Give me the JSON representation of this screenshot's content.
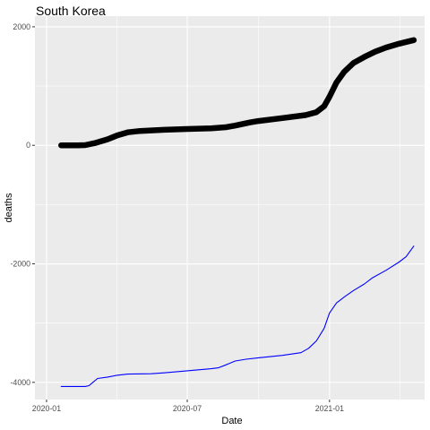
{
  "chart_data": {
    "type": "line",
    "title": "South Korea",
    "xlabel": "Date",
    "ylabel": "deaths",
    "x_ticks": [
      "2020-01",
      "2020-07",
      "2021-01"
    ],
    "y_ticks": [
      -4000,
      -2000,
      0,
      2000
    ],
    "xlim": [
      "2019-12-17",
      "2021-05-04"
    ],
    "ylim": [
      -4290,
      2180
    ],
    "grid": true,
    "legend": "none",
    "series": [
      {
        "style": "thick-black-points",
        "color": "#000000",
        "points": [
          [
            "2020-01-20",
            0
          ],
          [
            "2020-02-10",
            0
          ],
          [
            "2020-02-20",
            3
          ],
          [
            "2020-03-05",
            42
          ],
          [
            "2020-03-20",
            102
          ],
          [
            "2020-04-01",
            165
          ],
          [
            "2020-04-15",
            220
          ],
          [
            "2020-05-01",
            242
          ],
          [
            "2020-06-01",
            262
          ],
          [
            "2020-07-01",
            275
          ],
          [
            "2020-08-01",
            288
          ],
          [
            "2020-08-20",
            305
          ],
          [
            "2020-09-01",
            332
          ],
          [
            "2020-09-20",
            385
          ],
          [
            "2020-10-01",
            410
          ],
          [
            "2020-11-01",
            460
          ],
          [
            "2020-12-01",
            510
          ],
          [
            "2020-12-15",
            560
          ],
          [
            "2020-12-25",
            660
          ],
          [
            "2021-01-01",
            820
          ],
          [
            "2021-01-10",
            1060
          ],
          [
            "2021-01-20",
            1240
          ],
          [
            "2021-02-01",
            1390
          ],
          [
            "2021-02-15",
            1490
          ],
          [
            "2021-03-01",
            1580
          ],
          [
            "2021-03-15",
            1650
          ],
          [
            "2021-04-01",
            1715
          ],
          [
            "2021-04-15",
            1760
          ],
          [
            "2021-04-20",
            1775
          ]
        ]
      },
      {
        "style": "thin-blue-line",
        "color": "#0000ff",
        "points": [
          [
            "2020-01-20",
            -4070
          ],
          [
            "2020-02-20",
            -4070
          ],
          [
            "2020-02-25",
            -4055
          ],
          [
            "2020-03-01",
            -4000
          ],
          [
            "2020-03-07",
            -3935
          ],
          [
            "2020-03-20",
            -3910
          ],
          [
            "2020-04-01",
            -3880
          ],
          [
            "2020-04-15",
            -3860
          ],
          [
            "2020-05-15",
            -3855
          ],
          [
            "2020-06-01",
            -3840
          ],
          [
            "2020-07-01",
            -3805
          ],
          [
            "2020-08-01",
            -3770
          ],
          [
            "2020-08-10",
            -3755
          ],
          [
            "2020-08-20",
            -3705
          ],
          [
            "2020-09-01",
            -3640
          ],
          [
            "2020-09-15",
            -3610
          ],
          [
            "2020-10-01",
            -3585
          ],
          [
            "2020-11-01",
            -3545
          ],
          [
            "2020-11-25",
            -3500
          ],
          [
            "2020-12-05",
            -3425
          ],
          [
            "2020-12-15",
            -3300
          ],
          [
            "2020-12-25",
            -3090
          ],
          [
            "2021-01-01",
            -2830
          ],
          [
            "2021-01-10",
            -2660
          ],
          [
            "2021-01-20",
            -2560
          ],
          [
            "2021-02-01",
            -2450
          ],
          [
            "2021-02-15",
            -2340
          ],
          [
            "2021-02-25",
            -2240
          ],
          [
            "2021-03-15",
            -2110
          ],
          [
            "2021-04-01",
            -1970
          ],
          [
            "2021-04-10",
            -1880
          ],
          [
            "2021-04-20",
            -1700
          ]
        ]
      }
    ]
  }
}
